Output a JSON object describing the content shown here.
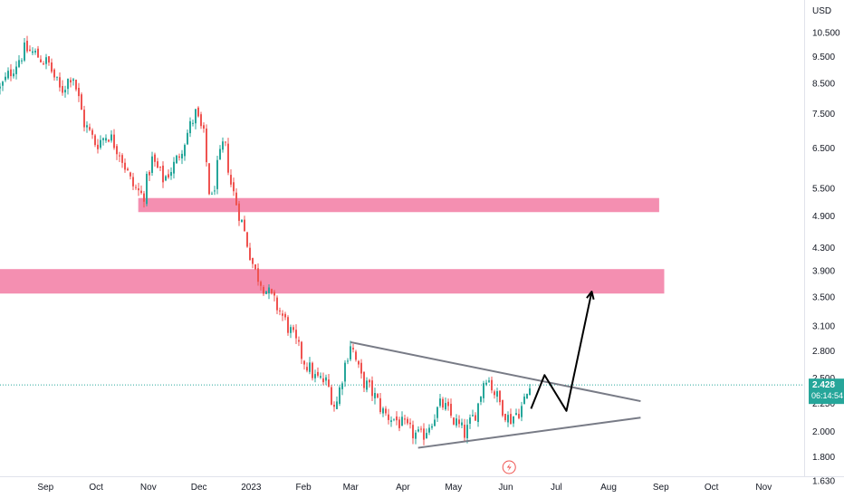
{
  "chart_data": {
    "type": "candlestick",
    "title": "",
    "currency": "USD",
    "y_scale": "log",
    "ylim": [
      1.6,
      11.8
    ],
    "y_ticks": [
      "10.500",
      "9.500",
      "8.500",
      "7.500",
      "6.500",
      "5.500",
      "4.900",
      "4.300",
      "3.900",
      "3.500",
      "3.100",
      "2.800",
      "2.500",
      "2.250",
      "2.000",
      "1.800",
      "1.630"
    ],
    "x_ticks": [
      {
        "label": "Sep",
        "date": "2022-09-01"
      },
      {
        "label": "Oct",
        "date": "2022-10-01"
      },
      {
        "label": "Nov",
        "date": "2022-11-01"
      },
      {
        "label": "Dec",
        "date": "2022-12-01"
      },
      {
        "label": "2023",
        "date": "2023-01-01"
      },
      {
        "label": "Feb",
        "date": "2023-02-01"
      },
      {
        "label": "Mar",
        "date": "2023-03-01"
      },
      {
        "label": "Apr",
        "date": "2023-04-01"
      },
      {
        "label": "May",
        "date": "2023-05-01"
      },
      {
        "label": "Jun",
        "date": "2023-06-01"
      },
      {
        "label": "Jul",
        "date": "2023-07-01"
      },
      {
        "label": "Aug",
        "date": "2023-08-01"
      },
      {
        "label": "Sep",
        "date": "2023-09-01"
      },
      {
        "label": "Oct",
        "date": "2023-10-01"
      },
      {
        "label": "Nov",
        "date": "2023-11-01"
      }
    ],
    "x_range": [
      "2022-08-05",
      "2023-11-25"
    ],
    "price_path": [
      [
        "2022-08-05",
        8.3
      ],
      [
        "2022-08-12",
        9.0
      ],
      [
        "2022-08-20",
        9.8
      ],
      [
        "2022-08-26",
        9.6
      ],
      [
        "2022-09-03",
        9.2
      ],
      [
        "2022-09-10",
        8.2
      ],
      [
        "2022-09-17",
        8.9
      ],
      [
        "2022-09-24",
        7.2
      ],
      [
        "2022-10-01",
        6.6
      ],
      [
        "2022-10-08",
        6.9
      ],
      [
        "2022-10-15",
        6.4
      ],
      [
        "2022-10-22",
        5.6
      ],
      [
        "2022-10-29",
        5.3
      ],
      [
        "2022-11-03",
        6.2
      ],
      [
        "2022-11-10",
        5.7
      ],
      [
        "2022-11-17",
        6.1
      ],
      [
        "2022-11-24",
        6.9
      ],
      [
        "2022-11-29",
        7.5
      ],
      [
        "2022-12-04",
        6.8
      ],
      [
        "2022-12-08",
        5.1
      ],
      [
        "2022-12-12",
        6.0
      ],
      [
        "2022-12-16",
        6.7
      ],
      [
        "2022-12-20",
        5.6
      ],
      [
        "2022-12-27",
        4.7
      ],
      [
        "2023-01-03",
        3.9
      ],
      [
        "2023-01-10",
        3.6
      ],
      [
        "2023-01-18",
        3.3
      ],
      [
        "2023-01-25",
        3.0
      ],
      [
        "2023-02-01",
        2.7
      ],
      [
        "2023-02-08",
        2.5
      ],
      [
        "2023-02-15",
        2.45
      ],
      [
        "2023-02-20",
        2.2
      ],
      [
        "2023-02-25",
        2.6
      ],
      [
        "2023-03-01",
        2.9
      ],
      [
        "2023-03-07",
        2.5
      ],
      [
        "2023-03-14",
        2.35
      ],
      [
        "2023-03-21",
        2.15
      ],
      [
        "2023-03-28",
        2.1
      ],
      [
        "2023-04-05",
        2.0
      ],
      [
        "2023-04-12",
        1.95
      ],
      [
        "2023-04-18",
        2.1
      ],
      [
        "2023-04-24",
        2.25
      ],
      [
        "2023-05-01",
        2.1
      ],
      [
        "2023-05-08",
        1.98
      ],
      [
        "2023-05-15",
        2.2
      ],
      [
        "2023-05-20",
        2.55
      ],
      [
        "2023-05-27",
        2.3
      ],
      [
        "2023-06-03",
        2.1
      ],
      [
        "2023-06-10",
        2.2
      ],
      [
        "2023-06-16",
        2.428
      ]
    ],
    "last_price": "2.428",
    "countdown": "06:14:54",
    "zones": [
      {
        "low": 4.98,
        "high": 5.28,
        "from": "2022-10-26",
        "to": "2023-08-31",
        "color": "#f48fb1"
      },
      {
        "low": 3.55,
        "high": 3.93,
        "from": "2022-08-05",
        "to": "2023-09-03",
        "color": "#f48fb1"
      }
    ],
    "trendlines": [
      {
        "from": [
          "2023-03-01",
          2.9
        ],
        "to": [
          "2023-08-20",
          2.27
        ],
        "color": "#787b86"
      },
      {
        "from": [
          "2023-04-10",
          1.87
        ],
        "to": [
          "2023-08-20",
          2.12
        ],
        "color": "#787b86"
      }
    ],
    "projection": [
      [
        "2023-06-16",
        2.2
      ],
      [
        "2023-06-24",
        2.53
      ],
      [
        "2023-07-07",
        2.18
      ],
      [
        "2023-07-22",
        3.58
      ]
    ],
    "colors": {
      "up": "#26a69a",
      "down": "#ef5350",
      "price_tag": "#26a69a",
      "projection": "#000000",
      "event": "#ef5350"
    }
  }
}
